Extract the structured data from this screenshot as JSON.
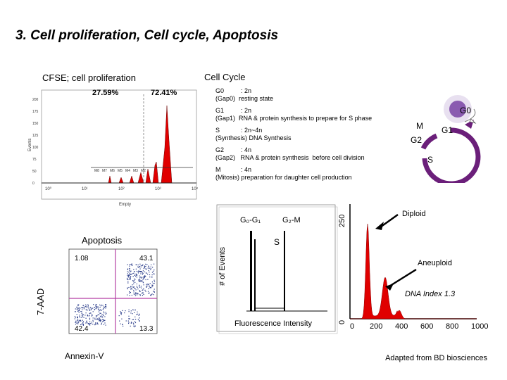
{
  "title": "3. Cell proliferation, Cell cycle, Apoptosis",
  "sections": {
    "cfse": "CFSE; cell proliferation",
    "cell_cycle": "Cell Cycle",
    "apoptosis": "Apoptosis"
  },
  "cfse_plot": {
    "pct_left": "27.59%",
    "pct_right": "72.41%",
    "ylabel": "Events",
    "xlabel": "Empty",
    "xticks": [
      "10⁰",
      "10¹",
      "10²",
      "10³",
      "10⁴"
    ],
    "yticks": [
      "0",
      "50",
      "75",
      "100",
      "125",
      "150",
      "175",
      "200"
    ],
    "gate_labels": [
      "M8",
      "M7",
      "M6",
      "M5",
      "M4",
      "M3",
      "M2"
    ]
  },
  "cycle_phases": [
    {
      "name": "G0",
      "ploidy": ": 2n",
      "desc": "(Gap0)  resting state"
    },
    {
      "name": "G1",
      "ploidy": ": 2n",
      "desc": "(Gap1)  RNA & protein synthesis to prepare for S phase"
    },
    {
      "name": "S",
      "ploidy": ": 2n~4n",
      "desc": "(Synthesis) DNA Synthesis"
    },
    {
      "name": "G2",
      "ploidy": ": 4n",
      "desc": "(Gap2)   RNA & protein synthesis  before cell division"
    },
    {
      "name": "M",
      "ploidy": ": 4n",
      "desc": "(Mitosis) preparation for daughter cell production"
    }
  ],
  "cycle_diagram": {
    "labels": [
      "G0",
      "M",
      "G1",
      "G2",
      "S"
    ],
    "colors": {
      "arc": "#6b1f7a",
      "cell": "#8a5bb0"
    }
  },
  "apoptosis_plot": {
    "ylabel": "7-AAD",
    "xlabel": "Annexin-V",
    "quadrants": [
      "1.08",
      "43.1",
      "42.4",
      "13.3"
    ]
  },
  "schematic": {
    "ylabel": "# of Events",
    "xlabel": "Fluorescence Intensity",
    "g0g1": "G₀-G₁",
    "g2m": "G₂-M",
    "s": "S"
  },
  "dna_histogram": {
    "ymax_label": "250",
    "ymin_label": "0",
    "xticks": [
      "0",
      "200",
      "400",
      "600",
      "800",
      "1000"
    ],
    "annotations": [
      "Diploid",
      "Aneuploid",
      "DNA Index 1.3"
    ]
  },
  "credit": "Adapted from BD biosciences",
  "chart_data": {
    "type": "histogram",
    "title": "",
    "xlabel": "",
    "ylabel": "",
    "x": [
      0,
      200,
      400,
      600,
      800,
      1000
    ],
    "peaks": [
      {
        "name": "Diploid",
        "position": 0.33
      },
      {
        "name": "Aneuploid",
        "position": 0.55
      }
    ],
    "ylim": [
      0,
      250
    ],
    "xlim": [
      0,
      1000
    ]
  }
}
